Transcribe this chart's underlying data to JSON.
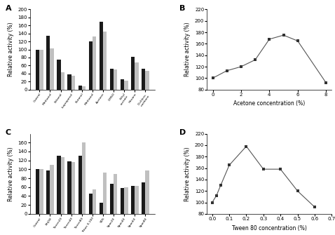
{
  "A": {
    "labels": [
      "Control",
      "Methanol",
      "Ethanol",
      "Isopropanol",
      "Butanol",
      "Methanol",
      "Acetone",
      "DMSO",
      "Ethyl\nacetate",
      "Hexane",
      "Dichloro-\nmethane"
    ],
    "black_bars": [
      100,
      135,
      75,
      38,
      10,
      120,
      170,
      52,
      25,
      82,
      52
    ],
    "gray_bars": [
      100,
      102,
      44,
      35,
      8,
      133,
      145,
      50,
      23,
      68,
      47
    ],
    "ylabel": "Relative activity (%)",
    "ylim": [
      0,
      200
    ],
    "yticks": [
      0,
      20,
      40,
      60,
      80,
      100,
      120,
      140,
      160,
      180,
      200
    ]
  },
  "B": {
    "x": [
      0,
      1,
      2,
      3,
      4,
      5,
      6,
      8
    ],
    "y": [
      100,
      113,
      120,
      132,
      168,
      175,
      165,
      92
    ],
    "xlabel": "Acetone concentration (%)",
    "ylabel": "Relative activity (%)",
    "ylim": [
      80,
      220
    ],
    "yticks": [
      80,
      100,
      120,
      140,
      160,
      180,
      200,
      220
    ],
    "xticks": [
      0,
      2,
      4,
      6,
      8
    ]
  },
  "C": {
    "labels": [
      "Control",
      "Brij58",
      "Tween20",
      "Tween40",
      "Tween80",
      "Triton X-100",
      "SDS",
      "Span20",
      "Span40",
      "Span60",
      "Span80"
    ],
    "black_bars": [
      100,
      98,
      130,
      118,
      130,
      46,
      25,
      68,
      58,
      62,
      70
    ],
    "gray_bars": [
      100,
      110,
      128,
      116,
      160,
      55,
      93,
      90,
      60,
      63,
      98
    ],
    "ylabel": "Relative activity (%)",
    "ylim": [
      0,
      180
    ],
    "yticks": [
      0,
      20,
      40,
      60,
      80,
      100,
      120,
      140,
      160
    ]
  },
  "D": {
    "x": [
      0.0,
      0.025,
      0.05,
      0.1,
      0.2,
      0.3,
      0.4,
      0.5,
      0.6
    ],
    "y": [
      100,
      112,
      130,
      165,
      198,
      158,
      158,
      120,
      92
    ],
    "xlabel": "Tween 80 concentration (%)",
    "ylabel": "Relative activity (%)",
    "ylim": [
      80,
      220
    ],
    "yticks": [
      80,
      100,
      120,
      140,
      160,
      180,
      200,
      220
    ],
    "xticks": [
      0.0,
      0.1,
      0.2,
      0.3,
      0.4,
      0.5,
      0.6,
      0.7
    ],
    "xticklabels": [
      "0.0",
      "0.1",
      "0.2",
      "0.3",
      "0.4",
      "0.5",
      "0.6",
      "0.7"
    ]
  },
  "panel_labels": [
    "A",
    "B",
    "C",
    "D"
  ],
  "bar_black": "#1a1a1a",
  "bar_gray": "#c0c0c0",
  "font_size": 5.0,
  "label_font_size": 5.5,
  "panel_font_size": 8,
  "tick_font_size": 5.0
}
